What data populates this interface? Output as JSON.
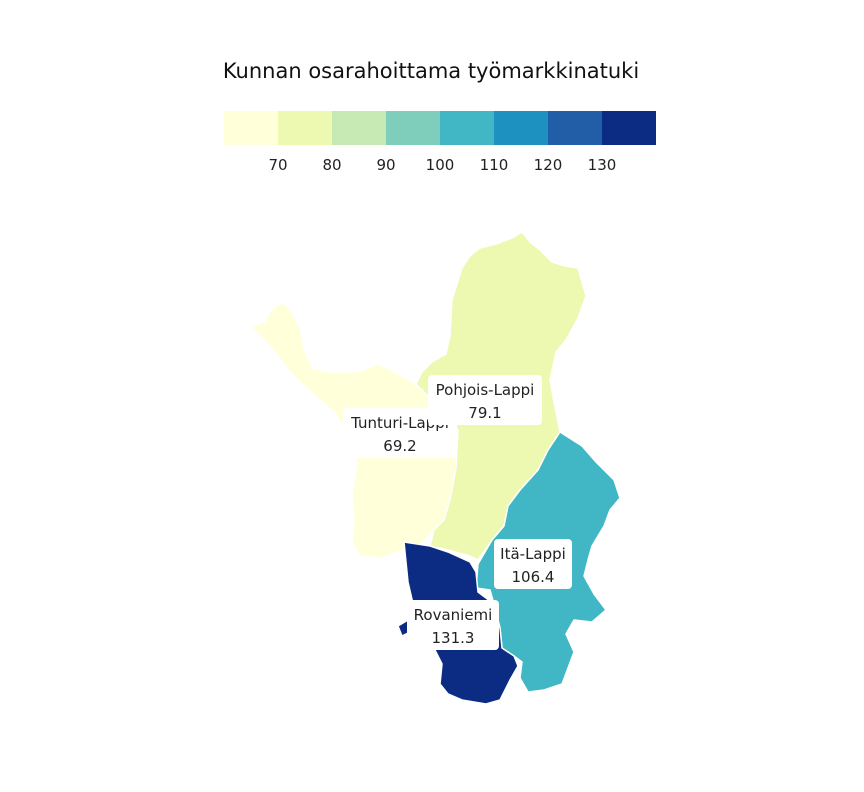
{
  "title": "Kunnan osarahoittama työmarkkinatuki",
  "legend": {
    "steps": [
      {
        "color": "#ffffd9"
      },
      {
        "color": "#edf8b1"
      },
      {
        "color": "#c7e9b4"
      },
      {
        "color": "#7fcdbb"
      },
      {
        "color": "#41b6c4"
      },
      {
        "color": "#1d91c0"
      },
      {
        "color": "#225ea8"
      },
      {
        "color": "#0c2c84"
      }
    ],
    "ticks": [
      "70",
      "80",
      "90",
      "100",
      "110",
      "120",
      "130"
    ]
  },
  "regions": [
    {
      "id": "tunturi-lappi",
      "name": "Tunturi-Lappi",
      "value": "69.2",
      "color": "#ffffd9"
    },
    {
      "id": "pohjois-lappi",
      "name": "Pohjois-Lappi",
      "value": "79.1",
      "color": "#edf8b1"
    },
    {
      "id": "ita-lappi",
      "name": "Itä-Lappi",
      "value": "106.4",
      "color": "#41b6c4"
    },
    {
      "id": "rovaniemi",
      "name": "Rovaniemi",
      "value": "131.3",
      "color": "#0c2c84"
    }
  ]
}
